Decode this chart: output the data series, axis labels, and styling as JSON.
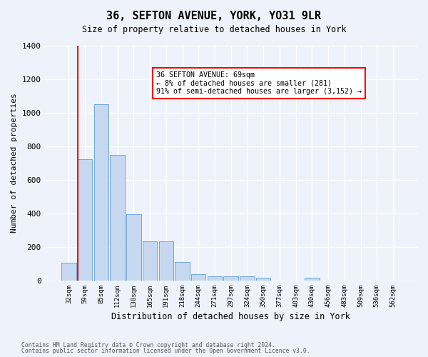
{
  "title": "36, SEFTON AVENUE, YORK, YO31 9LR",
  "subtitle": "Size of property relative to detached houses in York",
  "xlabel": "Distribution of detached houses by size in York",
  "ylabel": "Number of detached properties",
  "categories": [
    "32sqm",
    "59sqm",
    "85sqm",
    "112sqm",
    "138sqm",
    "165sqm",
    "191sqm",
    "218sqm",
    "244sqm",
    "271sqm",
    "297sqm",
    "324sqm",
    "350sqm",
    "377sqm",
    "403sqm",
    "430sqm",
    "456sqm",
    "483sqm",
    "509sqm",
    "536sqm",
    "562sqm"
  ],
  "values": [
    105,
    725,
    1050,
    750,
    395,
    235,
    235,
    110,
    40,
    25,
    25,
    25,
    15,
    0,
    0,
    15,
    0,
    0,
    0,
    0,
    0
  ],
  "bar_color": "#c5d8f0",
  "bar_edge_color": "#6ea8d8",
  "red_line_index": 1,
  "annotation_title": "36 SEFTON AVENUE: 69sqm",
  "annotation_line1": "← 8% of detached houses are smaller (281)",
  "annotation_line2": "91% of semi-detached houses are larger (3,152) →",
  "footer1": "Contains HM Land Registry data © Crown copyright and database right 2024.",
  "footer2": "Contains public sector information licensed under the Open Government Licence v3.0.",
  "ylim": [
    0,
    1400
  ],
  "yticks": [
    0,
    200,
    400,
    600,
    800,
    1000,
    1200,
    1400
  ],
  "bg_color": "#eef3fb",
  "grid_color": "#ffffff"
}
